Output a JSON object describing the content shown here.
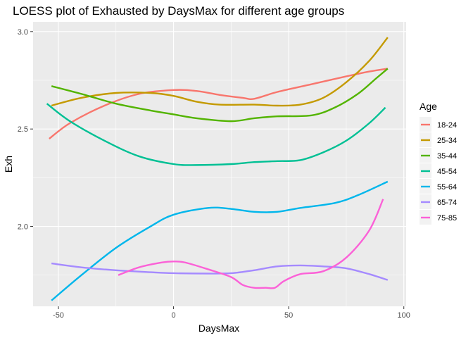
{
  "chart_data": {
    "type": "line",
    "title": "LOESS plot of Exhausted by DaysMax for different age groups",
    "xlabel": "DaysMax",
    "ylabel": "Exh",
    "xlim": [
      -61,
      101
    ],
    "ylim": [
      1.59,
      3.05
    ],
    "x_ticks": [
      -50,
      0,
      50,
      100
    ],
    "x_tick_labels": [
      "-50",
      "0",
      "50",
      "100"
    ],
    "y_ticks": [
      2.0,
      2.5,
      3.0
    ],
    "y_tick_labels": [
      "2.0",
      "2.5",
      "3.0"
    ],
    "grid": true,
    "legend": {
      "title": "Age",
      "position": "right"
    },
    "series": [
      {
        "name": "18-24",
        "color": "#F8766D",
        "x": [
          -54,
          -45,
          -30,
          -15,
          0,
          10,
          20,
          30,
          35,
          45,
          60,
          75,
          85,
          93
        ],
        "y": [
          2.45,
          2.53,
          2.62,
          2.68,
          2.7,
          2.695,
          2.675,
          2.66,
          2.655,
          2.69,
          2.73,
          2.77,
          2.795,
          2.81
        ]
      },
      {
        "name": "25-34",
        "color": "#C49A00",
        "x": [
          -53,
          -40,
          -25,
          -10,
          0,
          10,
          20,
          35,
          45,
          55,
          65,
          75,
          85,
          93
        ],
        "y": [
          2.62,
          2.66,
          2.685,
          2.685,
          2.67,
          2.64,
          2.625,
          2.625,
          2.62,
          2.625,
          2.66,
          2.74,
          2.85,
          2.97
        ]
      },
      {
        "name": "35-44",
        "color": "#53B400",
        "x": [
          -53,
          -40,
          -25,
          -10,
          0,
          10,
          25,
          35,
          45,
          60,
          70,
          80,
          88,
          93
        ],
        "y": [
          2.72,
          2.68,
          2.63,
          2.595,
          2.575,
          2.555,
          2.54,
          2.555,
          2.565,
          2.57,
          2.61,
          2.68,
          2.76,
          2.81
        ]
      },
      {
        "name": "45-54",
        "color": "#00C094",
        "x": [
          -55,
          -45,
          -30,
          -15,
          0,
          10,
          25,
          35,
          45,
          55,
          65,
          75,
          85,
          92
        ],
        "y": [
          2.63,
          2.54,
          2.44,
          2.36,
          2.32,
          2.315,
          2.32,
          2.33,
          2.335,
          2.34,
          2.38,
          2.44,
          2.53,
          2.61
        ]
      },
      {
        "name": "55-64",
        "color": "#00B6EB",
        "x": [
          -53,
          -40,
          -25,
          -10,
          0,
          15,
          25,
          35,
          45,
          55,
          70,
          80,
          93
        ],
        "y": [
          1.62,
          1.75,
          1.89,
          2.0,
          2.06,
          2.095,
          2.09,
          2.075,
          2.075,
          2.095,
          2.12,
          2.16,
          2.23
        ]
      },
      {
        "name": "65-74",
        "color": "#A58AFF",
        "x": [
          -53,
          -40,
          -25,
          -10,
          0,
          15,
          25,
          35,
          45,
          55,
          65,
          75,
          85,
          93
        ],
        "y": [
          1.81,
          1.79,
          1.775,
          1.765,
          1.76,
          1.758,
          1.76,
          1.775,
          1.795,
          1.8,
          1.795,
          1.785,
          1.755,
          1.725
        ]
      },
      {
        "name": "75-85",
        "color": "#FB61D7",
        "x": [
          -24,
          -15,
          -5,
          0,
          5,
          15,
          25,
          30,
          35,
          40,
          44,
          48,
          55,
          65,
          75,
          85,
          91
        ],
        "y": [
          1.75,
          1.79,
          1.815,
          1.82,
          1.815,
          1.78,
          1.74,
          1.7,
          1.685,
          1.685,
          1.685,
          1.72,
          1.755,
          1.77,
          1.84,
          1.98,
          2.14
        ]
      }
    ]
  }
}
